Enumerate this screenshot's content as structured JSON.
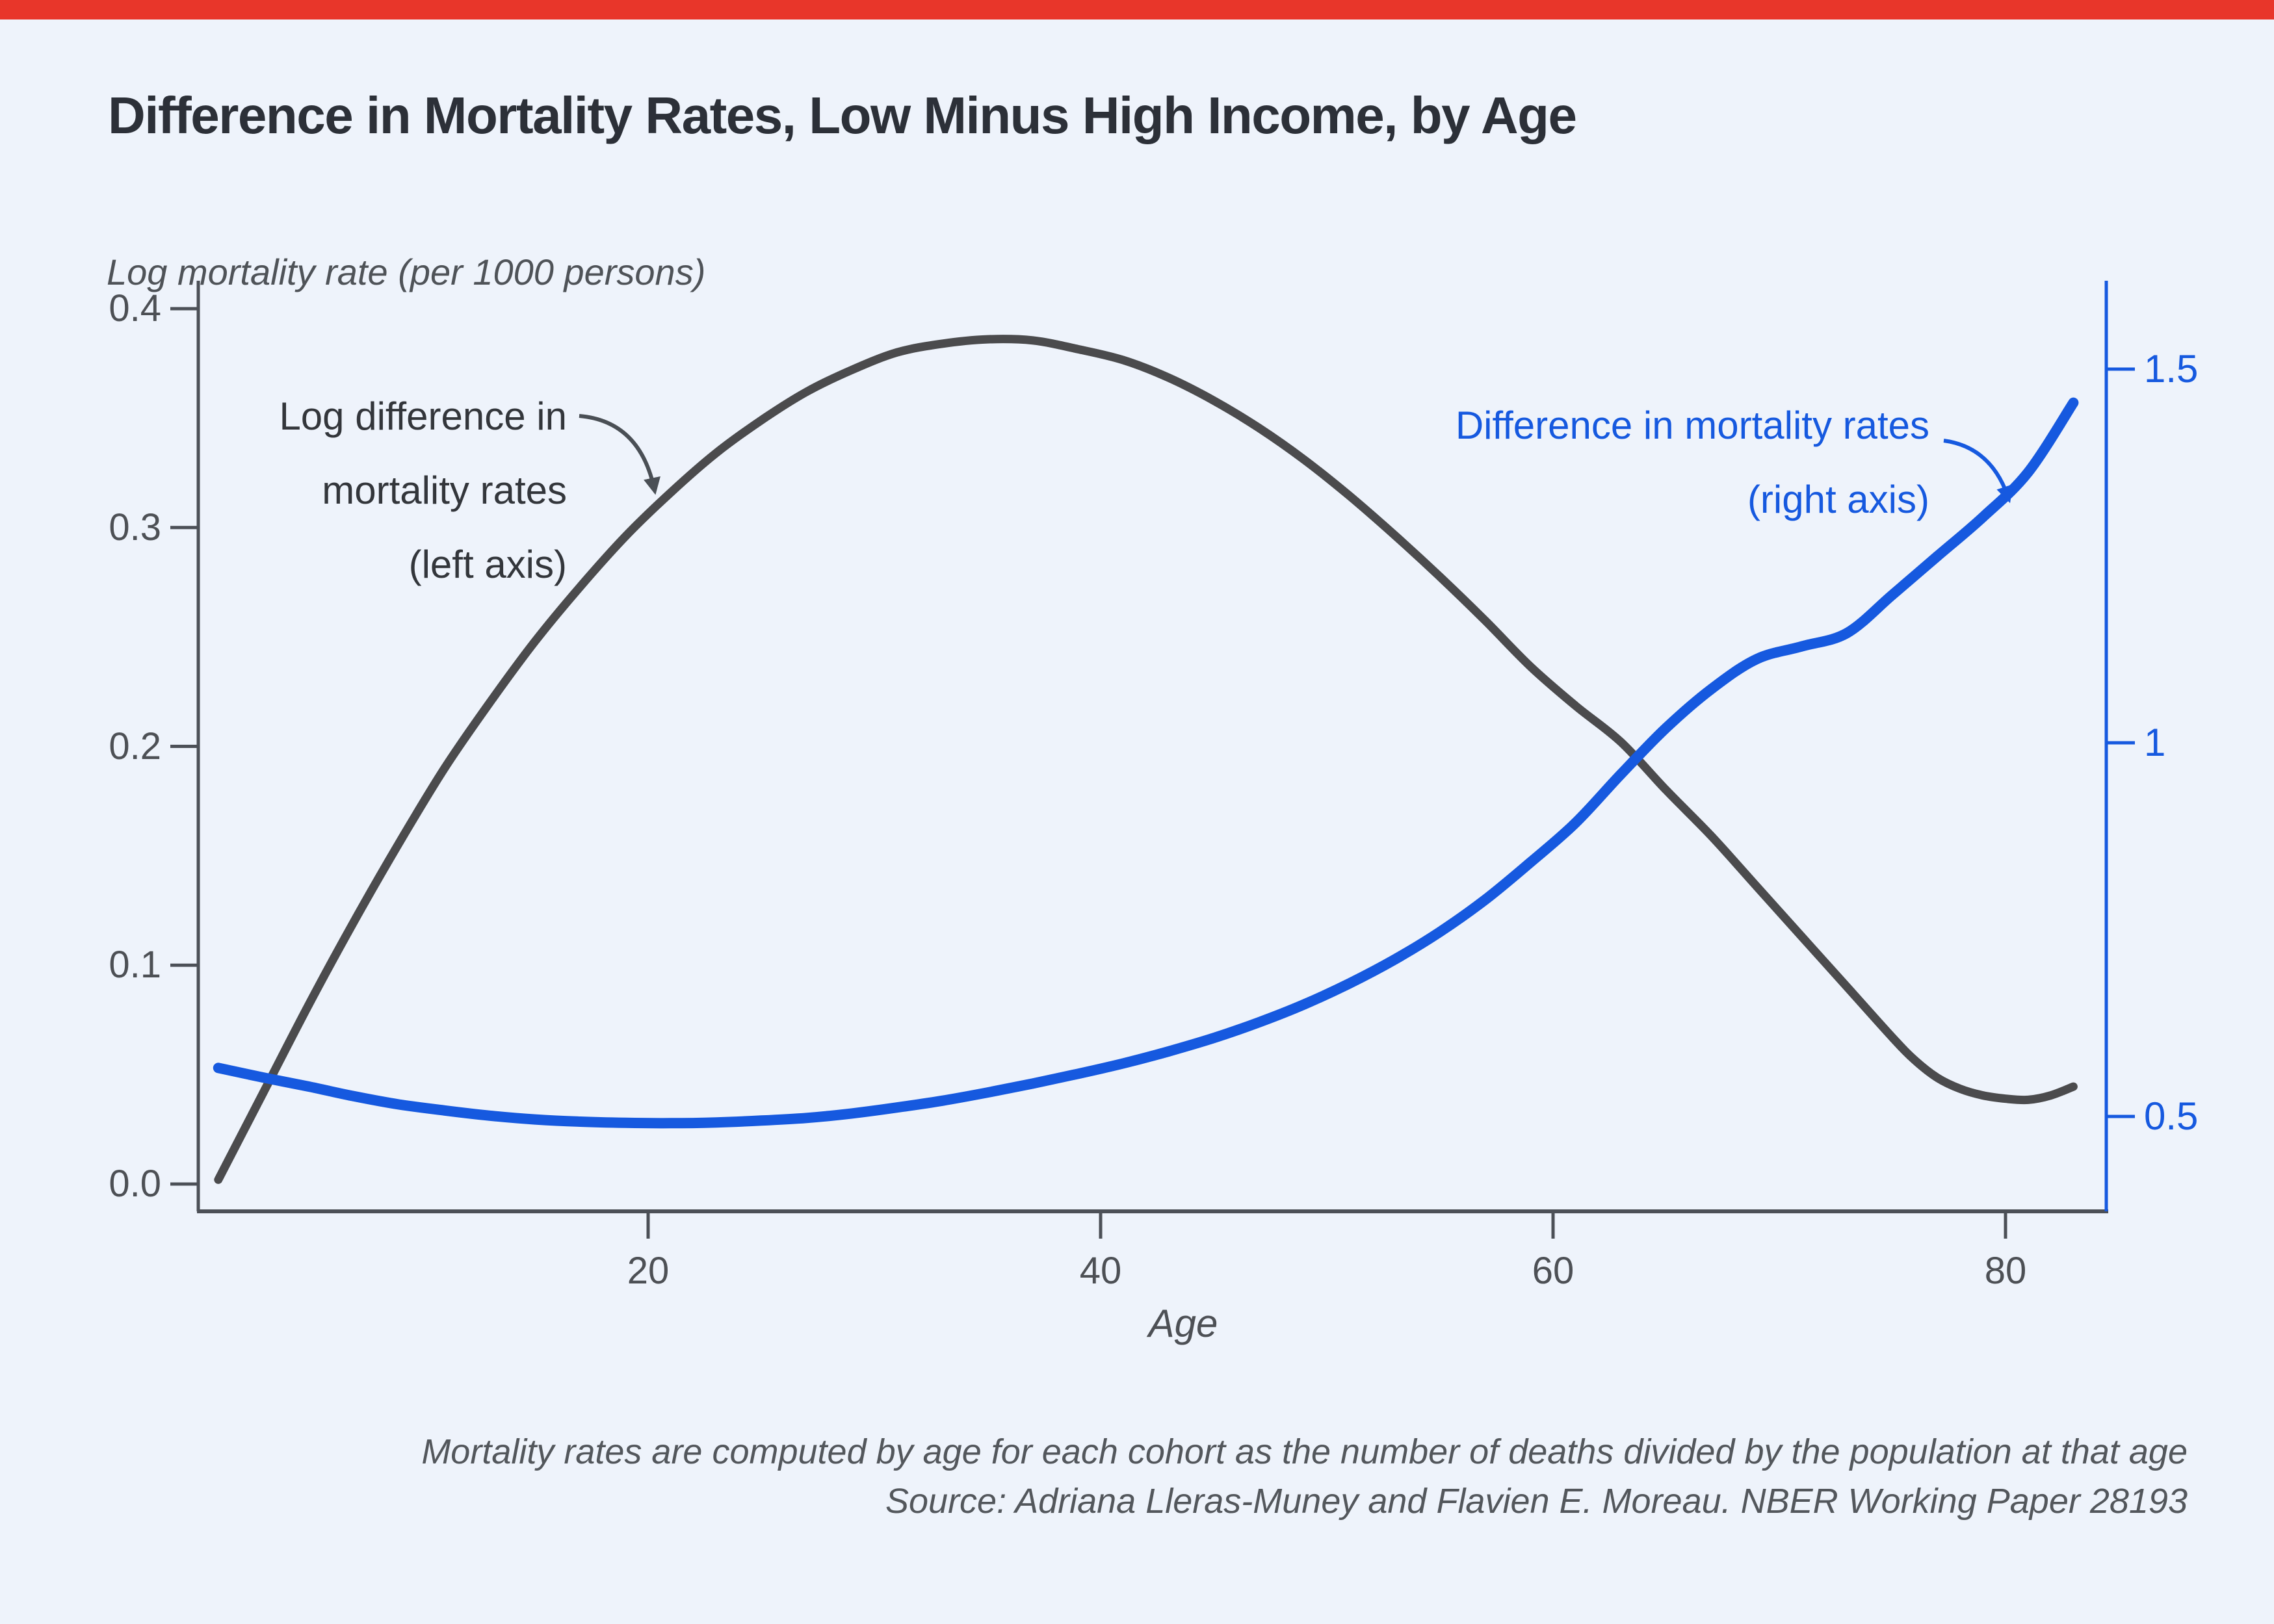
{
  "page": {
    "title": "Difference in Mortality Rates, Low Minus High Income, by Age",
    "notes": [
      "Mortality rates are computed by age for each cohort as the number of deaths divided by the population at that age",
      "Source: Adriana Lleras-Muney and Flavien E. Moreau. NBER Working Paper 28193"
    ]
  },
  "colors": {
    "accent_bar": "#E8362A",
    "background": "#EEF3FB",
    "dark_series": "#4B4B4D",
    "blue_series": "#1659DF",
    "axis_gray": "#4C5057",
    "title_text": "#2C3038",
    "note_gray": "#53575C"
  },
  "chart_data": {
    "type": "line",
    "title": "Difference in Mortality Rates, Low Minus High Income, by Age",
    "x_axis": {
      "label": "Age",
      "ticks": [
        20,
        40,
        60,
        80
      ],
      "tick_labels": [
        "20",
        "40",
        "60",
        "80"
      ],
      "range": [
        0,
        84.5
      ]
    },
    "y_axis_left": {
      "label": "Log mortality rate (per 1000 persons)",
      "ticks": [
        0.0,
        0.1,
        0.2,
        0.3,
        0.4
      ],
      "tick_labels": [
        "0.0",
        "0.1",
        "0.2",
        "0.3",
        "0.4"
      ],
      "range": [
        0,
        0.425
      ]
    },
    "y_axis_right": {
      "label": "Difference in mortality rates",
      "ticks": [
        0.5,
        1,
        1.5
      ],
      "tick_labels": [
        "0.5",
        "1",
        "1.5"
      ],
      "range": [
        0.44,
        1.57
      ]
    },
    "grid": false,
    "legend_position": "annotations-on-plot",
    "annotations": [
      {
        "lines": [
          "Log difference in",
          "mortality rates",
          "(left axis)"
        ],
        "color": "#33363B"
      },
      {
        "lines": [
          "Difference in mortality rates",
          "(right axis)",
          ""
        ],
        "color": "#1659DF"
      }
    ],
    "series": [
      {
        "name": "Log difference in mortality rates (left axis)",
        "axis": "left",
        "color": "#4B4B4D",
        "stroke_width": 13,
        "points": [
          [
            1,
            0.002
          ],
          [
            3,
            0.042
          ],
          [
            5,
            0.082
          ],
          [
            7,
            0.12
          ],
          [
            9,
            0.156
          ],
          [
            11,
            0.19
          ],
          [
            13,
            0.22
          ],
          [
            15,
            0.248
          ],
          [
            17,
            0.273
          ],
          [
            19,
            0.296
          ],
          [
            21,
            0.316
          ],
          [
            23,
            0.334
          ],
          [
            25,
            0.349
          ],
          [
            27,
            0.362
          ],
          [
            29,
            0.372
          ],
          [
            31,
            0.38
          ],
          [
            33,
            0.384
          ],
          [
            35,
            0.386
          ],
          [
            37,
            0.3855
          ],
          [
            39,
            0.3815
          ],
          [
            41,
            0.3765
          ],
          [
            43,
            0.3685
          ],
          [
            45,
            0.358
          ],
          [
            47,
            0.3455
          ],
          [
            49,
            0.331
          ],
          [
            51,
            0.3145
          ],
          [
            53,
            0.2965
          ],
          [
            55,
            0.2775
          ],
          [
            57,
            0.2575
          ],
          [
            59,
            0.2365
          ],
          [
            61,
            0.2185
          ],
          [
            63,
            0.202
          ],
          [
            65,
            0.18
          ],
          [
            67,
            0.159
          ],
          [
            69,
            0.136
          ],
          [
            71,
            0.113
          ],
          [
            73,
            0.09
          ],
          [
            75,
            0.067
          ],
          [
            76,
            0.0565
          ],
          [
            77,
            0.0485
          ],
          [
            78,
            0.0435
          ],
          [
            79,
            0.0405
          ],
          [
            80,
            0.039
          ],
          [
            81,
            0.0385
          ],
          [
            82,
            0.0405
          ],
          [
            83,
            0.0445
          ]
        ]
      },
      {
        "name": "Difference in mortality rates (right axis)",
        "axis": "right",
        "color": "#1659DF",
        "stroke_width": 16,
        "points": [
          [
            1,
            0.565
          ],
          [
            3,
            0.552
          ],
          [
            5,
            0.54
          ],
          [
            7,
            0.527
          ],
          [
            9,
            0.516
          ],
          [
            11,
            0.508
          ],
          [
            13,
            0.501
          ],
          [
            15,
            0.496
          ],
          [
            17,
            0.493
          ],
          [
            19,
            0.4915
          ],
          [
            21,
            0.491
          ],
          [
            23,
            0.492
          ],
          [
            25,
            0.4945
          ],
          [
            27,
            0.498
          ],
          [
            29,
            0.504
          ],
          [
            31,
            0.512
          ],
          [
            33,
            0.521
          ],
          [
            35,
            0.532
          ],
          [
            37,
            0.544
          ],
          [
            39,
            0.557
          ],
          [
            41,
            0.571
          ],
          [
            43,
            0.587
          ],
          [
            45,
            0.605
          ],
          [
            47,
            0.626
          ],
          [
            49,
            0.65
          ],
          [
            51,
            0.678
          ],
          [
            53,
            0.71
          ],
          [
            55,
            0.747
          ],
          [
            57,
            0.79
          ],
          [
            59,
            0.84
          ],
          [
            61,
            0.893
          ],
          [
            63,
            0.958
          ],
          [
            65,
            1.02
          ],
          [
            67,
            1.072
          ],
          [
            69,
            1.112
          ],
          [
            71,
            1.129
          ],
          [
            73,
            1.147
          ],
          [
            75,
            1.198
          ],
          [
            77,
            1.25
          ],
          [
            79,
            1.302
          ],
          [
            81,
            1.362
          ],
          [
            83,
            1.455
          ]
        ]
      }
    ]
  }
}
